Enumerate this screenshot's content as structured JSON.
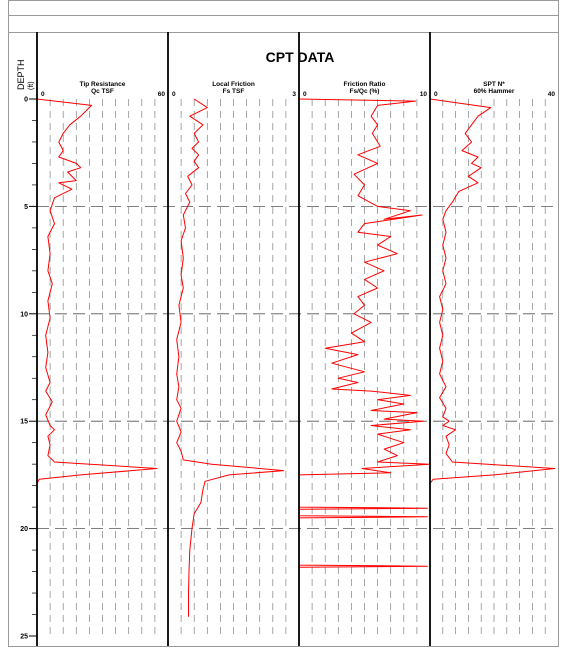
{
  "chart_data": {
    "type": "line",
    "title": "CPT DATA",
    "depth_label": "DEPTH",
    "depth_unit": "(ft)",
    "depth_range": [
      0,
      25
    ],
    "depth_ticks": [
      0,
      5,
      10,
      15,
      20,
      25
    ],
    "line_color": "#ff0000",
    "grid_color": "#808080",
    "tracks": [
      {
        "label": "Tip Resistance",
        "unit": "Qc TSF",
        "min": 0,
        "max": 60,
        "min_label": "0",
        "max_label": "60",
        "points": [
          [
            0.0,
            0
          ],
          [
            25,
            0.3
          ],
          [
            20,
            0.8
          ],
          [
            15,
            1.2
          ],
          [
            12,
            1.6
          ],
          [
            10,
            2.0
          ],
          [
            12,
            2.4
          ],
          [
            10,
            2.7
          ],
          [
            18,
            3.0
          ],
          [
            20,
            3.2
          ],
          [
            14,
            3.4
          ],
          [
            18,
            3.8
          ],
          [
            10,
            3.9
          ],
          [
            16,
            4.2
          ],
          [
            8,
            4.6
          ],
          [
            6,
            5.2
          ],
          [
            8,
            5.8
          ],
          [
            5,
            6.4
          ],
          [
            6,
            7.2
          ],
          [
            5,
            8.0
          ],
          [
            7,
            8.6
          ],
          [
            5,
            9.4
          ],
          [
            6,
            10.2
          ],
          [
            4,
            11.0
          ],
          [
            5,
            11.8
          ],
          [
            4,
            12.5
          ],
          [
            6,
            13.2
          ],
          [
            4,
            13.6
          ],
          [
            7,
            14.1
          ],
          [
            4,
            14.7
          ],
          [
            6,
            15.2
          ],
          [
            8,
            15.4
          ],
          [
            5,
            15.7
          ],
          [
            6,
            16.1
          ],
          [
            5,
            16.6
          ],
          [
            8,
            16.9
          ],
          [
            55,
            17.2
          ],
          [
            20,
            17.5
          ],
          [
            1,
            17.7
          ],
          [
            0,
            17.9
          ],
          [
            0,
            25
          ]
        ]
      },
      {
        "label": "Local Friction",
        "unit": "Fs TSF",
        "min": 0,
        "max": 3,
        "min_label": "0",
        "max_label": "3",
        "points": [
          [
            0.6,
            0
          ],
          [
            0.9,
            0.4
          ],
          [
            0.5,
            0.8
          ],
          [
            0.8,
            1.2
          ],
          [
            0.6,
            1.6
          ],
          [
            0.7,
            2.0
          ],
          [
            0.55,
            2.3
          ],
          [
            0.7,
            2.6
          ],
          [
            0.6,
            2.9
          ],
          [
            0.7,
            3.2
          ],
          [
            0.45,
            3.6
          ],
          [
            0.55,
            4.0
          ],
          [
            0.4,
            4.4
          ],
          [
            0.5,
            4.8
          ],
          [
            0.35,
            5.4
          ],
          [
            0.4,
            6.0
          ],
          [
            0.3,
            6.6
          ],
          [
            0.35,
            7.4
          ],
          [
            0.3,
            8.2
          ],
          [
            0.35,
            8.8
          ],
          [
            0.25,
            9.6
          ],
          [
            0.3,
            10.4
          ],
          [
            0.2,
            11.2
          ],
          [
            0.25,
            12.0
          ],
          [
            0.2,
            12.8
          ],
          [
            0.25,
            13.4
          ],
          [
            0.2,
            14.0
          ],
          [
            0.3,
            14.4
          ],
          [
            0.2,
            15.0
          ],
          [
            0.3,
            15.5
          ],
          [
            0.2,
            16.0
          ],
          [
            0.3,
            16.4
          ],
          [
            0.35,
            16.8
          ],
          [
            1.0,
            17.0
          ],
          [
            2.65,
            17.3
          ],
          [
            1.4,
            17.5
          ],
          [
            0.85,
            17.8
          ],
          [
            0.8,
            18.2
          ],
          [
            0.75,
            18.8
          ],
          [
            0.6,
            19.3
          ],
          [
            0.55,
            20.0
          ],
          [
            0.5,
            21.0
          ],
          [
            0.48,
            22.0
          ],
          [
            0.47,
            23.0
          ],
          [
            0.47,
            24.1
          ]
        ]
      },
      {
        "label": "Friction Ratio",
        "unit": "Fs/Qc (%)",
        "min": 0,
        "max": 10,
        "min_label": "0",
        "max_label": "10",
        "points": [
          [
            0.0,
            0
          ],
          [
            8.9,
            0.1
          ],
          [
            6.0,
            0.3
          ],
          [
            5.5,
            0.8
          ],
          [
            6.0,
            1.2
          ],
          [
            5.6,
            1.6
          ],
          [
            6.2,
            2.2
          ],
          [
            4.5,
            2.6
          ],
          [
            6.0,
            3.0
          ],
          [
            4.2,
            3.5
          ],
          [
            5.0,
            4.0
          ],
          [
            4.5,
            4.5
          ],
          [
            6.0,
            5.0
          ],
          [
            8.5,
            5.2
          ],
          [
            6.5,
            5.6
          ],
          [
            9.4,
            5.4
          ],
          [
            5.0,
            5.8
          ],
          [
            4.5,
            6.2
          ],
          [
            7.0,
            6.4
          ],
          [
            6.0,
            6.8
          ],
          [
            7.5,
            7.2
          ],
          [
            5.0,
            7.6
          ],
          [
            6.5,
            8.0
          ],
          [
            5.0,
            8.4
          ],
          [
            6.0,
            8.8
          ],
          [
            4.5,
            9.2
          ],
          [
            5.0,
            9.6
          ],
          [
            4.2,
            10.0
          ],
          [
            5.5,
            10.4
          ],
          [
            4.0,
            10.9
          ],
          [
            5.0,
            11.3
          ],
          [
            2.0,
            11.6
          ],
          [
            4.5,
            11.9
          ],
          [
            2.5,
            12.3
          ],
          [
            5.0,
            12.7
          ],
          [
            3.0,
            13.0
          ],
          [
            4.5,
            13.2
          ],
          [
            2.5,
            13.5
          ],
          [
            5.5,
            13.6
          ],
          [
            8.5,
            13.8
          ],
          [
            6.0,
            14.0
          ],
          [
            8.0,
            14.2
          ],
          [
            5.5,
            14.5
          ],
          [
            9.0,
            14.6
          ],
          [
            6.5,
            14.9
          ],
          [
            9.5,
            15.0
          ],
          [
            5.5,
            15.2
          ],
          [
            8.5,
            15.4
          ],
          [
            6.0,
            15.6
          ],
          [
            8.0,
            16.0
          ],
          [
            6.5,
            16.3
          ],
          [
            7.5,
            16.6
          ],
          [
            6.0,
            16.9
          ],
          [
            10.0,
            17.0
          ],
          [
            4.8,
            17.2
          ],
          [
            7.0,
            17.4
          ],
          [
            0.0,
            17.5
          ],
          [
            0.0,
            19.0
          ],
          [
            9.8,
            19.05
          ],
          [
            0.0,
            19.1
          ],
          [
            0.0,
            19.4
          ],
          [
            9.8,
            19.45
          ],
          [
            0.0,
            19.5
          ],
          [
            0.0,
            21.7
          ],
          [
            9.8,
            21.75
          ],
          [
            0.0,
            21.8
          ],
          [
            0.0,
            25.0
          ]
        ]
      },
      {
        "label": "SPT N*",
        "unit": "60% Hammer",
        "min": 0,
        "max": 40,
        "min_label": "0",
        "max_label": "40",
        "points": [
          [
            0.0,
            0
          ],
          [
            19,
            0.4
          ],
          [
            15,
            0.8
          ],
          [
            13,
            1.2
          ],
          [
            11,
            1.6
          ],
          [
            13,
            2.0
          ],
          [
            10,
            2.4
          ],
          [
            15,
            2.7
          ],
          [
            13,
            3.0
          ],
          [
            16,
            3.2
          ],
          [
            12,
            3.6
          ],
          [
            15,
            3.9
          ],
          [
            9,
            4.3
          ],
          [
            7,
            4.8
          ],
          [
            5,
            5.2
          ],
          [
            4,
            5.6
          ],
          [
            5,
            6.2
          ],
          [
            4,
            6.8
          ],
          [
            5,
            7.4
          ],
          [
            4,
            8.0
          ],
          [
            5,
            8.6
          ],
          [
            3,
            9.2
          ],
          [
            4,
            9.8
          ],
          [
            3,
            10.4
          ],
          [
            4,
            11.0
          ],
          [
            3,
            11.6
          ],
          [
            4,
            12.2
          ],
          [
            3,
            12.8
          ],
          [
            5,
            13.4
          ],
          [
            3,
            13.9
          ],
          [
            5,
            14.4
          ],
          [
            4,
            14.8
          ],
          [
            6,
            15.0
          ],
          [
            4,
            15.2
          ],
          [
            8,
            15.4
          ],
          [
            5,
            15.7
          ],
          [
            6,
            16.1
          ],
          [
            5,
            16.5
          ],
          [
            7,
            16.9
          ],
          [
            39,
            17.2
          ],
          [
            20,
            17.5
          ],
          [
            1,
            17.7
          ],
          [
            0,
            17.9
          ],
          [
            0,
            25
          ]
        ]
      }
    ]
  }
}
